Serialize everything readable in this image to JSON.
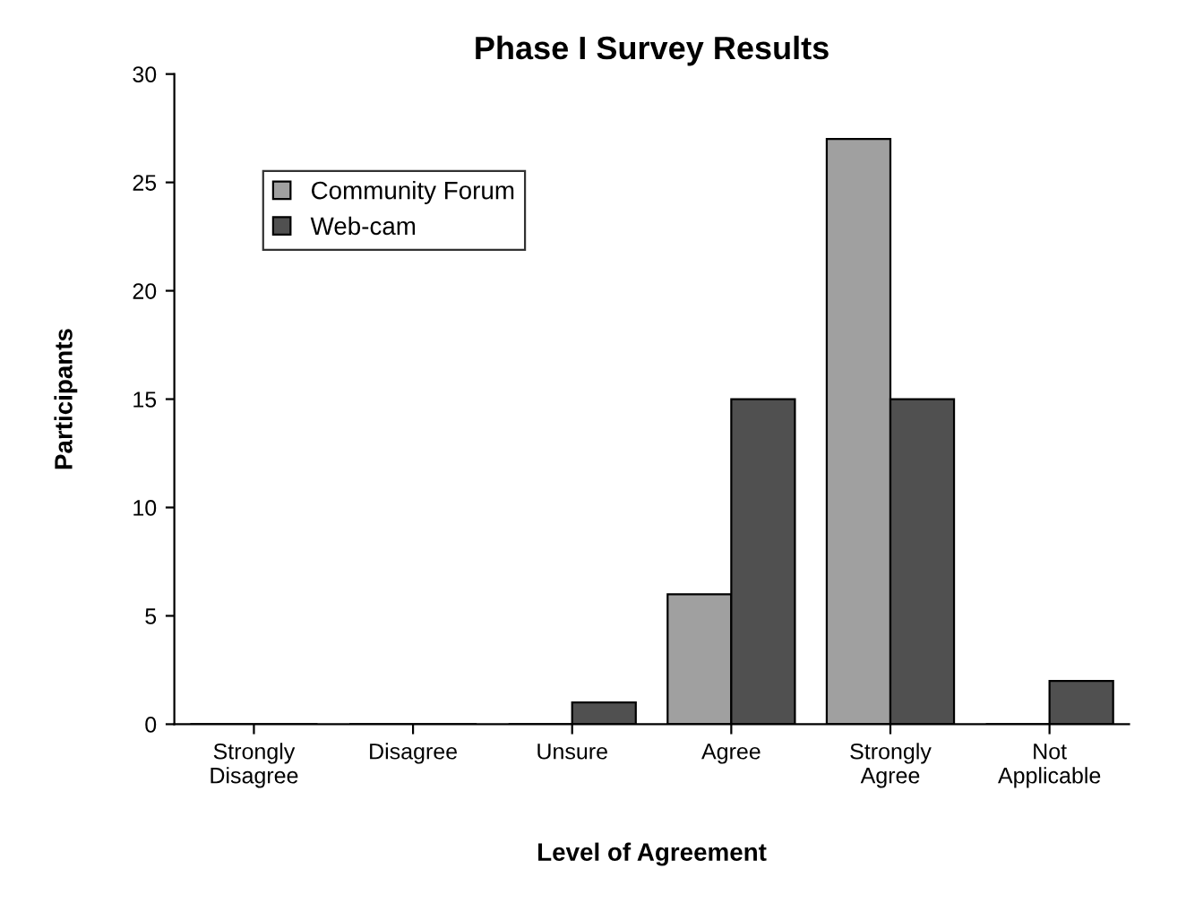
{
  "chart_data": {
    "type": "bar",
    "title": "Phase I Survey Results",
    "xlabel": "Level of Agreement",
    "ylabel": "Participants",
    "categories": [
      "Strongly\nDisagree",
      "Disagree",
      "Unsure",
      "Agree",
      "Strongly\nAgree",
      "Not\nApplicable"
    ],
    "series": [
      {
        "name": "Community Forum",
        "color": "#a0a0a0",
        "values": [
          0,
          0,
          0,
          6,
          27,
          0
        ]
      },
      {
        "name": "Web-cam",
        "color": "#505050",
        "values": [
          0,
          0,
          1,
          15,
          15,
          2
        ]
      }
    ],
    "ylim": [
      0,
      30
    ],
    "yticks": [
      0,
      5,
      10,
      15,
      20,
      25,
      30
    ],
    "grid": false,
    "legend": "top left"
  }
}
